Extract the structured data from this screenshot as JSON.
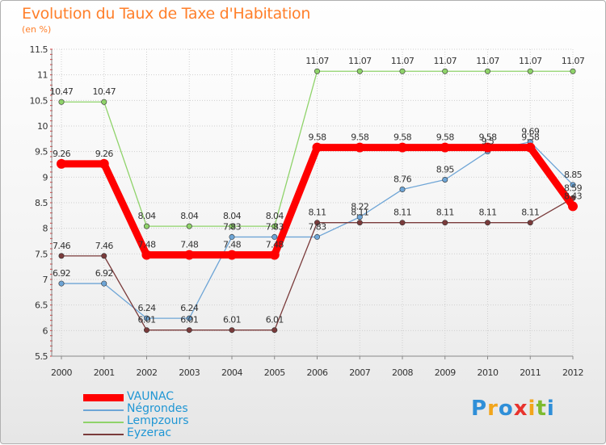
{
  "title": "Evolution du Taux de Taxe d'Habitation",
  "subtitle": "(en %)",
  "logo": {
    "text": "Proxiti",
    "letters": [
      {
        "ch": "P",
        "color": "#2f8fd8"
      },
      {
        "ch": "r",
        "color": "#f2a51b"
      },
      {
        "ch": "o",
        "color": "#2f8fd8"
      },
      {
        "ch": "x",
        "color": "#e8332d"
      },
      {
        "ch": "i",
        "color": "#f2a51b"
      },
      {
        "ch": "t",
        "color": "#7dbb2f"
      },
      {
        "ch": "i",
        "color": "#2f8fd8"
      }
    ]
  },
  "chart_data": {
    "type": "line",
    "x": [
      "2000",
      "2001",
      "2002",
      "2003",
      "2004",
      "2005",
      "2006",
      "2007",
      "2008",
      "2009",
      "2010",
      "2011",
      "2012"
    ],
    "ylim": [
      5.5,
      11.5
    ],
    "yticks": [
      "5.5",
      "6",
      "6.5",
      "7",
      "7.5",
      "8",
      "8.5",
      "9",
      "9.5",
      "10",
      "10.5",
      "11",
      "11.5"
    ],
    "grid": true,
    "legend_position": "bottom-left",
    "series": [
      {
        "name": "VAUNAC",
        "color": "#ff0000",
        "emphasis": true,
        "values": [
          9.26,
          9.26,
          7.48,
          7.48,
          7.48,
          7.48,
          9.58,
          9.58,
          9.58,
          9.58,
          9.58,
          9.58,
          8.43
        ],
        "labels": [
          "9.26",
          "9.26",
          "7.48",
          "7.48",
          "7.48",
          "7.48",
          "9.58",
          "9.58",
          "9.58",
          "9.58",
          "9.58",
          "9.58",
          "8.43"
        ]
      },
      {
        "name": "Négrondes",
        "color": "#6ea5d6",
        "emphasis": false,
        "values": [
          6.92,
          6.92,
          6.24,
          6.24,
          7.83,
          7.83,
          7.83,
          8.22,
          8.76,
          8.95,
          9.5,
          9.69,
          8.85
        ],
        "labels": [
          "6.92",
          "6.92",
          "6.24",
          "6.24",
          "7.83",
          "7.83",
          "7.83",
          "8.22",
          "8.76",
          "8.95",
          "9.5",
          "9.69",
          "8.85"
        ]
      },
      {
        "name": "Lempzours",
        "color": "#8fd36a",
        "emphasis": false,
        "values": [
          10.47,
          10.47,
          8.04,
          8.04,
          8.04,
          8.04,
          11.07,
          11.07,
          11.07,
          11.07,
          11.07,
          11.07,
          11.07
        ],
        "labels": [
          "10.47",
          "10.47",
          "8.04",
          "8.04",
          "8.04",
          "8.04",
          "11.07",
          "11.07",
          "11.07",
          "11.07",
          "11.07",
          "11.07",
          "11.07"
        ]
      },
      {
        "name": "Eyzerac",
        "color": "#7a3b3b",
        "emphasis": false,
        "values": [
          7.46,
          7.46,
          6.01,
          6.01,
          6.01,
          6.01,
          8.11,
          8.11,
          8.11,
          8.11,
          8.11,
          8.11,
          8.59
        ],
        "labels": [
          "7.46",
          "7.46",
          "6.01",
          "6.01",
          "6.01",
          "6.01",
          "8.11",
          "8.11",
          "8.11",
          "8.11",
          "8.11",
          "8.11",
          "8.59"
        ]
      }
    ]
  }
}
